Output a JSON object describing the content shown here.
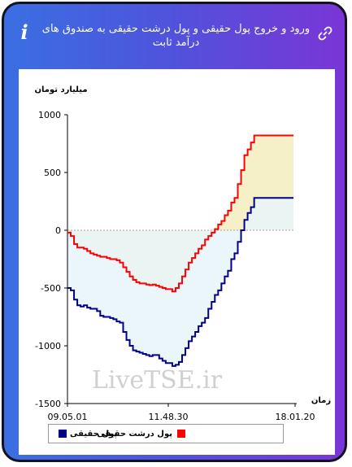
{
  "header": {
    "title": "ورود و خروج پول حقیقی و پول درشت حقیقی به صندوق های درآمد ثابت",
    "info_icon": "info-icon",
    "link_icon": "link-icon"
  },
  "watermark": "LiveTSE.ir",
  "colors": {
    "header_gradient_start": "#3a6fe2",
    "header_gradient_end": "#7a35d6",
    "real_money": "#00008b",
    "large_real_money": "#ff0000",
    "fill_real_money": "#e8f4fa",
    "fill_large_real_money": "#f5f0c7"
  },
  "chart_data": {
    "type": "line",
    "title": "ورود و خروج پول حقیقی و پول درشت حقیقی به صندوق های درآمد ثابت",
    "ylabel": "میلیارد تومان",
    "xlabel": "زمان",
    "ylim": [
      -1500,
      1000
    ],
    "yticks": [
      "1000",
      "500",
      "0",
      "-500",
      "-1000",
      "-1500"
    ],
    "xticks": [
      "09.05.01",
      "11.48.30",
      "18.01.20"
    ],
    "legend_position": "bottom",
    "series": [
      {
        "name": "پول حقیقی",
        "color": "#00008b",
        "values": [
          -500,
          -520,
          -600,
          -650,
          -660,
          -650,
          -670,
          -680,
          -680,
          -700,
          -740,
          -750,
          -750,
          -760,
          -770,
          -790,
          -800,
          -880,
          -950,
          -1000,
          -1040,
          -1050,
          -1060,
          -1070,
          -1080,
          -1090,
          -1080,
          -1080,
          -1110,
          -1130,
          -1150,
          -1150,
          -1175,
          -1165,
          -1140,
          -1080,
          -1020,
          -960,
          -920,
          -880,
          -830,
          -800,
          -760,
          -680,
          -620,
          -560,
          -520,
          -460,
          -400,
          -350,
          -250,
          -200,
          -100,
          0,
          90,
          150,
          200,
          280,
          280,
          280,
          280,
          280,
          280,
          280,
          280,
          280,
          280,
          280,
          280,
          280
        ]
      },
      {
        "name": "پول درشت حقیقی",
        "color": "#ff0000",
        "values": [
          -20,
          -50,
          -120,
          -150,
          -150,
          -160,
          -180,
          -200,
          -210,
          -220,
          -230,
          -230,
          -240,
          -250,
          -250,
          -260,
          -280,
          -320,
          -360,
          -400,
          -430,
          -450,
          -460,
          -460,
          -470,
          -475,
          -470,
          -480,
          -490,
          -500,
          -510,
          -510,
          -530,
          -500,
          -460,
          -400,
          -340,
          -280,
          -240,
          -200,
          -160,
          -130,
          -80,
          -50,
          -20,
          10,
          50,
          80,
          130,
          170,
          240,
          280,
          400,
          520,
          650,
          700,
          760,
          820,
          820,
          820,
          820,
          820,
          820,
          820,
          820,
          820,
          820,
          820,
          820,
          820
        ]
      }
    ]
  }
}
